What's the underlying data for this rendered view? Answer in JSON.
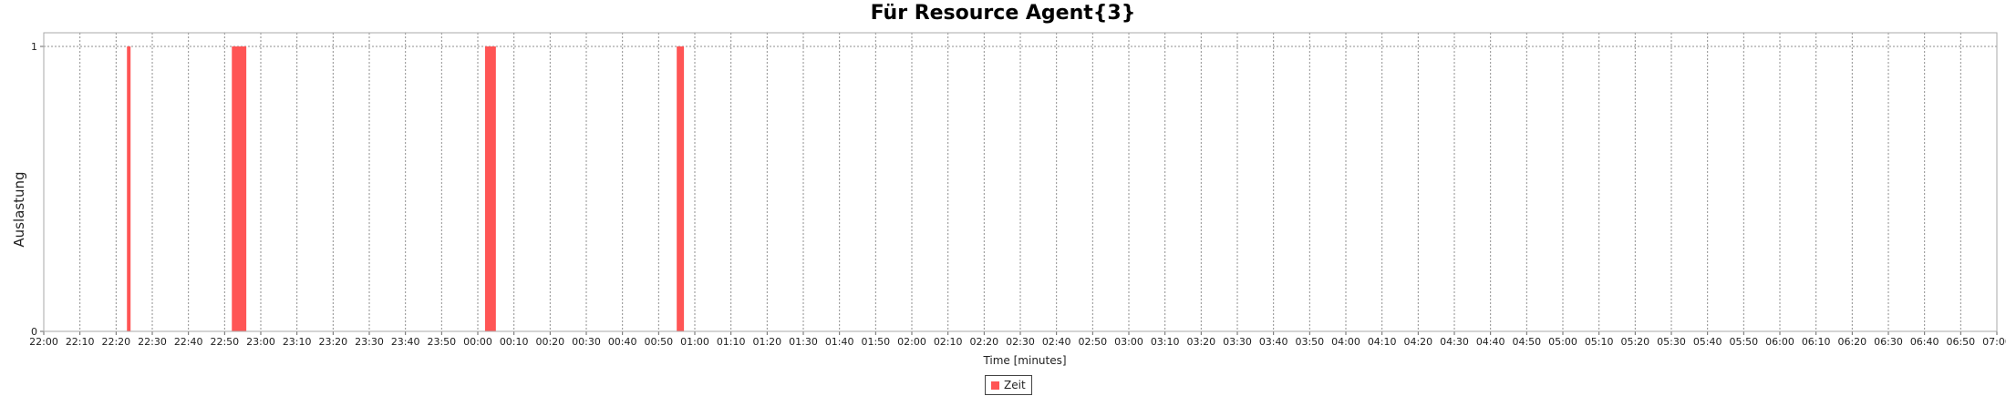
{
  "chart_data": {
    "type": "bar",
    "title": "Für Resource Agent{3}",
    "xlabel": "Time [minutes]",
    "ylabel": "Auslastung",
    "ylim": [
      0,
      1
    ],
    "y_ticks": [
      "0",
      "1"
    ],
    "x_range_minutes": [
      0,
      540
    ],
    "x_ticks": [
      "22:00",
      "22:10",
      "22:20",
      "22:30",
      "22:40",
      "22:50",
      "23:00",
      "23:10",
      "23:20",
      "23:30",
      "23:40",
      "23:50",
      "00:00",
      "00:10",
      "00:20",
      "00:30",
      "00:40",
      "00:50",
      "01:00",
      "01:10",
      "01:20",
      "01:30",
      "01:40",
      "01:50",
      "02:00",
      "02:10",
      "02:20",
      "02:30",
      "02:40",
      "02:50",
      "03:00",
      "03:10",
      "03:20",
      "03:30",
      "03:40",
      "03:50",
      "04:00",
      "04:10",
      "04:20",
      "04:30",
      "04:40",
      "04:50",
      "05:00",
      "05:10",
      "05:20",
      "05:30",
      "05:40",
      "05:50",
      "06:00",
      "06:10",
      "06:20",
      "06:30",
      "06:40",
      "06:50",
      "07:00"
    ],
    "grid": true,
    "legend_position": "bottom-center",
    "series": [
      {
        "name": "Zeit",
        "color": "#ff5555",
        "bars": [
          {
            "start": "22:23",
            "end": "22:24",
            "value": 1
          },
          {
            "start": "22:52",
            "end": "22:56",
            "value": 1
          },
          {
            "start": "00:02",
            "end": "00:05",
            "value": 1
          },
          {
            "start": "00:55",
            "end": "00:57",
            "value": 1
          }
        ]
      }
    ]
  }
}
